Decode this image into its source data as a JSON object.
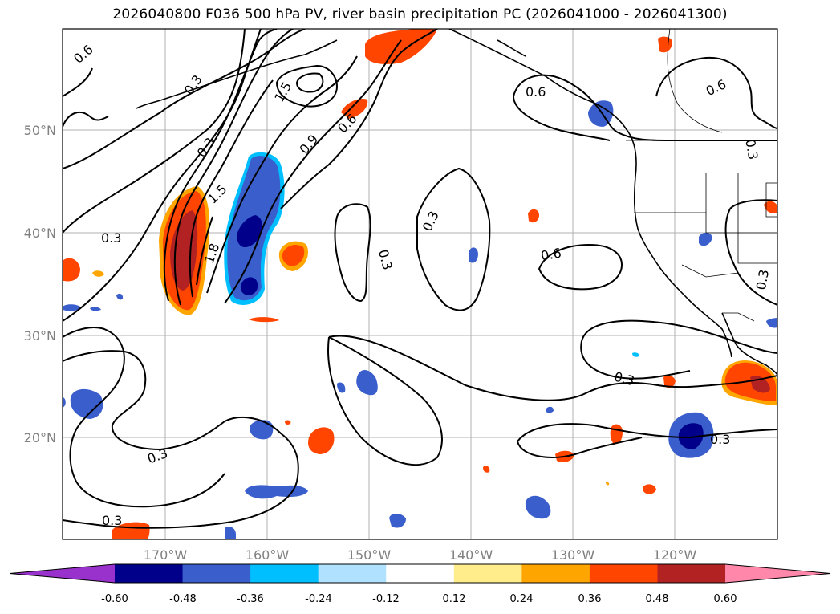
{
  "title": "2026040800 F036 500 hPa PV, river basin precipitation PC (2026041000 - 2026041300)",
  "latitude_labels": [
    "50°N",
    "40°N",
    "30°N",
    "20°N"
  ],
  "longitude_labels": [
    "170°W",
    "160°W",
    "150°W",
    "140°W",
    "130°W",
    "120°W"
  ],
  "contour_labels": [
    "0.6",
    "0.3",
    "1.5",
    "0.9",
    "0.6",
    "0.6",
    "0.3",
    "0.6",
    "0.3",
    "1.5",
    "1.8",
    "0.3",
    "0.3",
    "0.6",
    "0.3",
    "0.3",
    "0.3",
    "0.3",
    "0.3",
    "0.3"
  ],
  "colorbar": {
    "ticks": [
      "-0.60",
      "-0.48",
      "-0.36",
      "-0.24",
      "-0.12",
      "0.12",
      "0.24",
      "0.36",
      "0.48",
      "0.60"
    ],
    "colors": [
      "#9932cc",
      "#00008b",
      "#3a5fcd",
      "#00bfff",
      "#b0e2ff",
      "#ffffff",
      "#ffec8b",
      "#ffa500",
      "#ff4500",
      "#b22222",
      "#ff88aa"
    ]
  }
}
